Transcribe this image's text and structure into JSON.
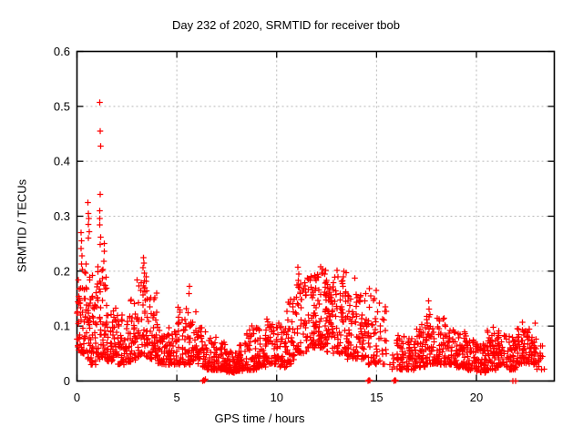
{
  "chart_data": {
    "type": "scatter",
    "title": "Day 232 of 2020, SRMTID for receiver tbob",
    "xlabel": "GPS time / hours",
    "ylabel": "SRMTID / TECUs",
    "xlim": [
      0,
      23.9
    ],
    "ylim": [
      0,
      0.6
    ],
    "xticks": [
      0,
      5,
      10,
      15,
      20
    ],
    "xtick_labels": [
      "0",
      "5",
      "10",
      "15",
      "20"
    ],
    "yticks": [
      0,
      0.1,
      0.2,
      0.3,
      0.4,
      0.5,
      0.6
    ],
    "ytick_labels": [
      "0",
      "0.1",
      "0.2",
      "0.3",
      "0.4",
      "0.5",
      "0.6"
    ],
    "grid": {
      "style": "dashed",
      "color": "#b8b8b8"
    },
    "border_color": "#000000",
    "background": "#ffffff",
    "legend": "none",
    "marker": {
      "shape": "plus",
      "size": 7,
      "color": "#ff0000"
    },
    "series": [
      {
        "name": "SRMTID",
        "peak_points": [
          [
            0.2,
            0.27
          ],
          [
            0.22,
            0.255
          ],
          [
            0.21,
            0.241
          ],
          [
            0.24,
            0.228
          ],
          [
            0.23,
            0.213
          ],
          [
            0.55,
            0.325
          ],
          [
            0.58,
            0.305
          ],
          [
            0.6,
            0.296
          ],
          [
            0.57,
            0.285
          ],
          [
            0.61,
            0.272
          ],
          [
            0.56,
            0.26
          ],
          [
            1.15,
            0.507
          ],
          [
            1.17,
            0.455
          ],
          [
            1.19,
            0.428
          ],
          [
            1.16,
            0.34
          ],
          [
            1.14,
            0.31
          ],
          [
            1.15,
            0.296
          ],
          [
            1.13,
            0.284
          ],
          [
            1.18,
            0.262
          ],
          [
            1.16,
            0.249
          ],
          [
            1.36,
            0.25
          ],
          [
            1.37,
            0.236
          ],
          [
            1.35,
            0.218
          ],
          [
            3.33,
            0.225
          ],
          [
            3.36,
            0.215
          ],
          [
            3.31,
            0.206
          ],
          [
            3.38,
            0.196
          ],
          [
            5.63,
            0.172
          ],
          [
            5.6,
            0.159
          ],
          [
            8.75,
            0.1
          ],
          [
            9.52,
            0.113
          ],
          [
            10.1,
            0.105
          ],
          [
            11.07,
            0.207
          ],
          [
            11.1,
            0.195
          ],
          [
            12.2,
            0.208
          ],
          [
            12.24,
            0.196
          ],
          [
            13.03,
            0.201
          ],
          [
            13.06,
            0.19
          ],
          [
            13.9,
            0.187
          ],
          [
            14.42,
            0.146
          ],
          [
            14.65,
            0.168
          ],
          [
            14.7,
            0.155
          ],
          [
            15.15,
            0.142
          ],
          [
            17.6,
            0.146
          ],
          [
            17.63,
            0.131
          ],
          [
            20.85,
            0.098
          ],
          [
            22.3,
            0.107
          ],
          [
            22.95,
            0.105
          ]
        ],
        "zero_points": [
          [
            6.3,
            0
          ],
          [
            6.34,
            0.002
          ],
          [
            6.38,
            0.001
          ],
          [
            6.42,
            0.003
          ],
          [
            14.58,
            0
          ],
          [
            14.62,
            0.002
          ],
          [
            14.66,
            0.001
          ],
          [
            15.88,
            0
          ],
          [
            15.92,
            0.002
          ],
          [
            15.96,
            0.001
          ],
          [
            21.82,
            0
          ],
          [
            21.96,
            0
          ]
        ],
        "density_bins": {
          "format": [
            "x_start",
            "x_end",
            "y_min",
            "y_max",
            "count",
            "low_bias"
          ],
          "bins": [
            [
              0.0,
              0.5,
              0.05,
              0.22,
              60,
              1.8
            ],
            [
              0.5,
              1.0,
              0.03,
              0.2,
              58,
              1.8
            ],
            [
              1.0,
              1.5,
              0.04,
              0.21,
              55,
              1.8
            ],
            [
              1.5,
              2.0,
              0.035,
              0.14,
              48,
              1.8
            ],
            [
              2.0,
              2.5,
              0.03,
              0.12,
              45,
              1.8
            ],
            [
              2.5,
              3.0,
              0.035,
              0.15,
              45,
              1.8
            ],
            [
              3.0,
              3.5,
              0.045,
              0.19,
              48,
              1.7
            ],
            [
              3.5,
              4.0,
              0.04,
              0.16,
              48,
              1.8
            ],
            [
              4.0,
              4.5,
              0.03,
              0.11,
              45,
              1.8
            ],
            [
              4.5,
              5.0,
              0.03,
              0.1,
              45,
              1.8
            ],
            [
              5.0,
              5.5,
              0.03,
              0.14,
              45,
              1.9
            ],
            [
              5.5,
              6.0,
              0.03,
              0.15,
              45,
              1.9
            ],
            [
              6.0,
              6.5,
              0.025,
              0.1,
              42,
              1.9
            ],
            [
              6.5,
              7.0,
              0.02,
              0.085,
              45,
              1.8
            ],
            [
              7.0,
              7.5,
              0.02,
              0.075,
              48,
              1.8
            ],
            [
              7.5,
              8.0,
              0.015,
              0.055,
              48,
              1.6
            ],
            [
              8.0,
              8.5,
              0.018,
              0.07,
              48,
              1.7
            ],
            [
              8.5,
              9.0,
              0.02,
              0.1,
              46,
              2.0
            ],
            [
              9.0,
              9.5,
              0.025,
              0.1,
              46,
              2.0
            ],
            [
              9.5,
              10.0,
              0.03,
              0.11,
              46,
              2.0
            ],
            [
              10.0,
              10.5,
              0.025,
              0.1,
              45,
              1.9
            ],
            [
              10.5,
              11.0,
              0.03,
              0.15,
              45,
              2.0
            ],
            [
              11.0,
              11.5,
              0.05,
              0.19,
              50,
              1.7
            ],
            [
              11.5,
              12.0,
              0.06,
              0.2,
              55,
              1.6
            ],
            [
              12.0,
              12.5,
              0.06,
              0.205,
              55,
              1.6
            ],
            [
              12.5,
              13.0,
              0.05,
              0.19,
              52,
              1.6
            ],
            [
              13.0,
              13.5,
              0.05,
              0.2,
              50,
              1.7
            ],
            [
              13.5,
              14.0,
              0.04,
              0.16,
              46,
              1.8
            ],
            [
              14.0,
              14.5,
              0.04,
              0.16,
              44,
              1.8
            ],
            [
              14.5,
              15.0,
              0.03,
              0.17,
              38,
              1.9
            ],
            [
              15.0,
              15.5,
              0.03,
              0.14,
              22,
              1.8
            ],
            [
              15.5,
              15.9,
              0.02,
              0.05,
              6,
              1.5
            ],
            [
              16.0,
              16.5,
              0.02,
              0.09,
              40,
              1.8
            ],
            [
              16.5,
              17.0,
              0.02,
              0.08,
              45,
              1.8
            ],
            [
              17.0,
              17.5,
              0.025,
              0.11,
              45,
              1.9
            ],
            [
              17.5,
              18.0,
              0.03,
              0.125,
              45,
              1.9
            ],
            [
              18.0,
              18.5,
              0.03,
              0.115,
              45,
              1.9
            ],
            [
              18.5,
              19.0,
              0.03,
              0.1,
              45,
              1.9
            ],
            [
              19.0,
              19.5,
              0.025,
              0.09,
              45,
              1.8
            ],
            [
              19.5,
              20.0,
              0.02,
              0.075,
              45,
              1.7
            ],
            [
              20.0,
              20.5,
              0.015,
              0.07,
              45,
              1.7
            ],
            [
              20.5,
              21.0,
              0.02,
              0.095,
              45,
              1.9
            ],
            [
              21.0,
              21.5,
              0.025,
              0.095,
              45,
              1.9
            ],
            [
              21.5,
              22.0,
              0.02,
              0.09,
              45,
              1.8
            ],
            [
              22.0,
              22.5,
              0.03,
              0.1,
              46,
              1.9
            ],
            [
              22.5,
              23.0,
              0.03,
              0.1,
              50,
              1.8
            ],
            [
              23.0,
              23.4,
              0.02,
              0.065,
              14,
              1.6
            ]
          ]
        }
      }
    ]
  }
}
